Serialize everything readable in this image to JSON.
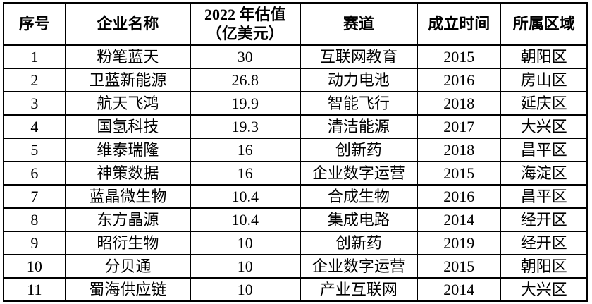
{
  "table": {
    "columns": [
      {
        "label": "序号"
      },
      {
        "label": "企业名称"
      },
      {
        "label": "2022 年估值\n（亿美元）"
      },
      {
        "label": "赛道"
      },
      {
        "label": "成立时间"
      },
      {
        "label": "所属区域"
      }
    ],
    "rows": [
      [
        "1",
        "粉笔蓝天",
        "30",
        "互联网教育",
        "2015",
        "朝阳区"
      ],
      [
        "2",
        "卫蓝新能源",
        "26.8",
        "动力电池",
        "2016",
        "房山区"
      ],
      [
        "3",
        "航天飞鸿",
        "19.9",
        "智能飞行",
        "2018",
        "延庆区"
      ],
      [
        "4",
        "国氢科技",
        "19.3",
        "清洁能源",
        "2017",
        "大兴区"
      ],
      [
        "5",
        "维泰瑞隆",
        "16",
        "创新药",
        "2018",
        "昌平区"
      ],
      [
        "6",
        "神策数据",
        "16",
        "企业数字运营",
        "2015",
        "海淀区"
      ],
      [
        "7",
        "蓝晶微生物",
        "10.4",
        "合成生物",
        "2016",
        "昌平区"
      ],
      [
        "8",
        "东方晶源",
        "10.4",
        "集成电路",
        "2014",
        "经开区"
      ],
      [
        "9",
        "昭衍生物",
        "10",
        "创新药",
        "2019",
        "经开区"
      ],
      [
        "10",
        "分贝通",
        "10",
        "企业数字运营",
        "2015",
        "朝阳区"
      ],
      [
        "11",
        "蜀海供应链",
        "10",
        "产业互联网",
        "2014",
        "大兴区"
      ]
    ],
    "colors": {
      "border": "#000000",
      "text": "#000000",
      "background": "#ffffff"
    }
  }
}
